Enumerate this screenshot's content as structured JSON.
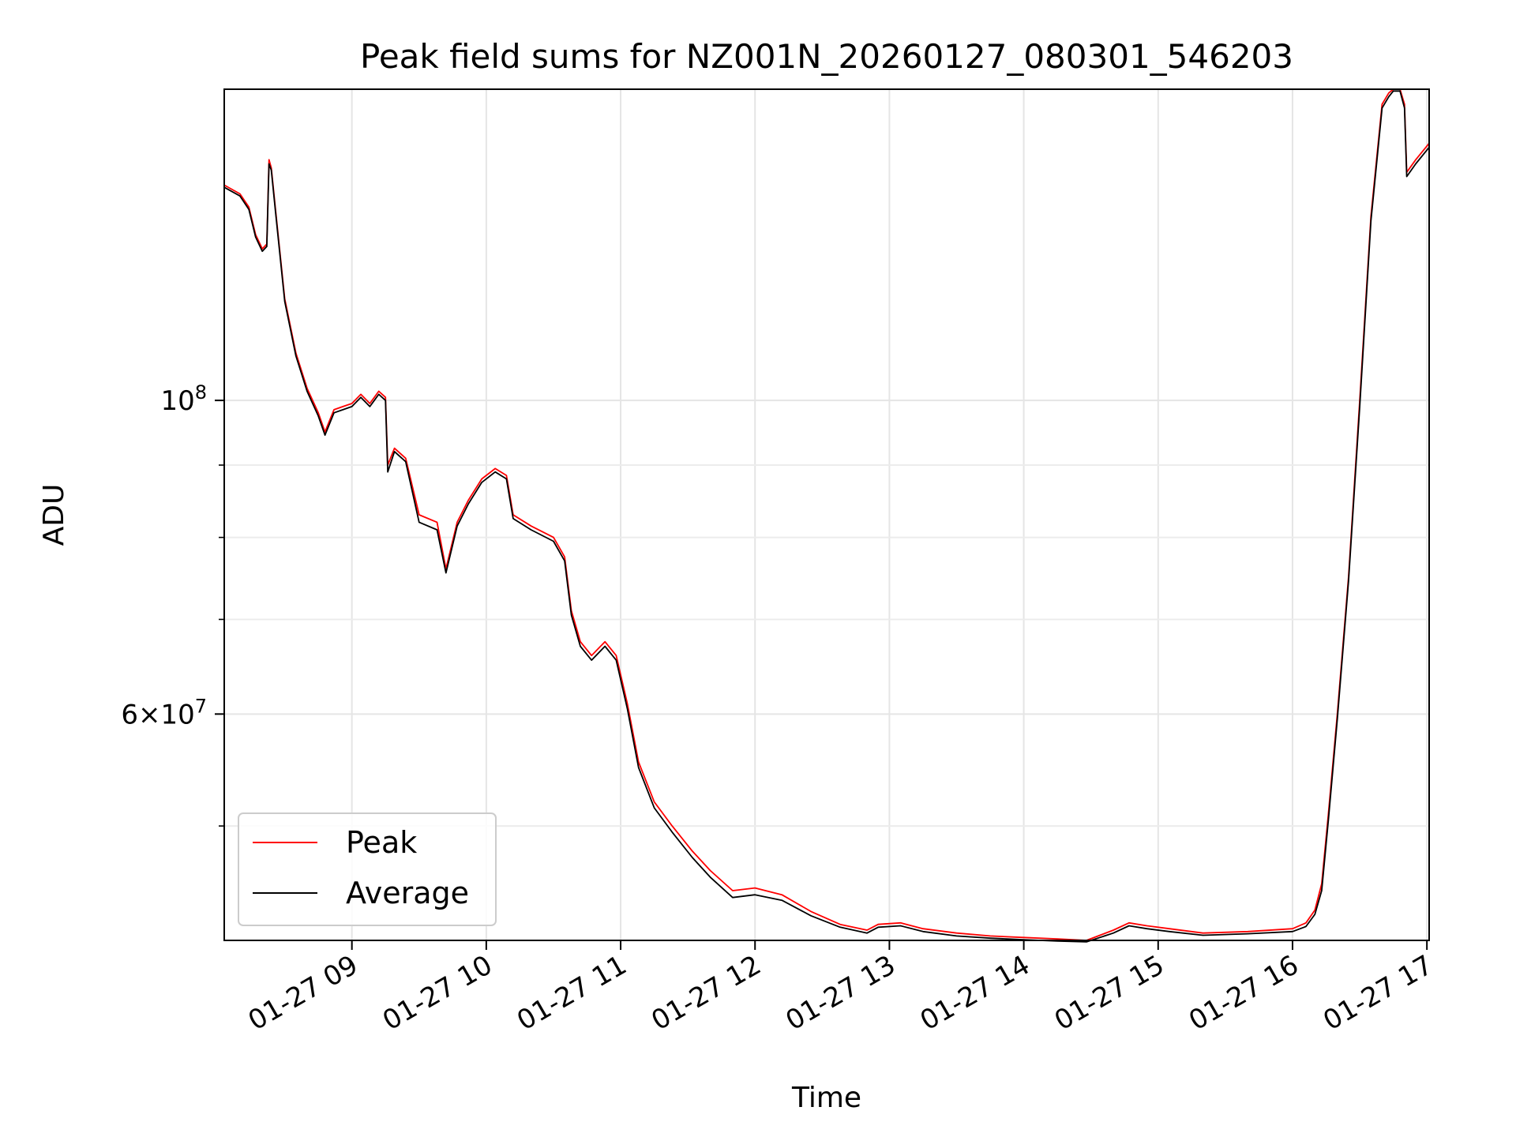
{
  "chart_data": {
    "type": "line",
    "title": "Peak field sums for NZ001N_20260127_080301_546203",
    "xlabel": "Time",
    "ylabel": "ADU",
    "yscale": "log",
    "xlim": [
      "01-27 08:03",
      "01-27 17:01"
    ],
    "ylim": [
      41500000,
      166000000
    ],
    "grid": true,
    "legend": "lower-left",
    "x_ticks": [
      "01-27 09",
      "01-27 10",
      "01-27 11",
      "01-27 12",
      "01-27 13",
      "01-27 14",
      "01-27 15",
      "01-27 16",
      "01-27 17"
    ],
    "y_ticks_major": [
      {
        "value": 100000000,
        "base": "10",
        "exp": "8",
        "mant": ""
      },
      {
        "value": 60000000,
        "base": "10",
        "exp": "7",
        "mant": "6"
      }
    ],
    "y_ticks_minor": [
      50000000,
      70000000,
      80000000,
      90000000
    ],
    "x": [
      "01-27 08:03",
      "01-27 08:10",
      "01-27 08:14",
      "01-27 08:17",
      "01-27 08:20",
      "01-27 08:22",
      "01-27 08:23",
      "01-27 08:24",
      "01-27 08:26",
      "01-27 08:30",
      "01-27 08:35",
      "01-27 08:40",
      "01-27 08:45",
      "01-27 08:48",
      "01-27 08:52",
      "01-27 08:56",
      "01-27 09:00",
      "01-27 09:04",
      "01-27 09:08",
      "01-27 09:12",
      "01-27 09:15",
      "01-27 09:16",
      "01-27 09:19",
      "01-27 09:24",
      "01-27 09:30",
      "01-27 09:38",
      "01-27 09:42",
      "01-27 09:47",
      "01-27 09:52",
      "01-27 09:58",
      "01-27 10:04",
      "01-27 10:09",
      "01-27 10:12",
      "01-27 10:20",
      "01-27 10:30",
      "01-27 10:35",
      "01-27 10:38",
      "01-27 10:42",
      "01-27 10:47",
      "01-27 10:53",
      "01-27 10:58",
      "01-27 11:03",
      "01-27 11:08",
      "01-27 11:15",
      "01-27 11:23",
      "01-27 11:32",
      "01-27 11:40",
      "01-27 11:50",
      "01-27 12:00",
      "01-27 12:12",
      "01-27 12:25",
      "01-27 12:38",
      "01-27 12:50",
      "01-27 12:55",
      "01-27 13:05",
      "01-27 13:15",
      "01-27 13:30",
      "01-27 13:45",
      "01-27 14:00",
      "01-27 14:15",
      "01-27 14:28",
      "01-27 14:40",
      "01-27 14:47",
      "01-27 14:55",
      "01-27 15:05",
      "01-27 15:20",
      "01-27 15:40",
      "01-27 16:00",
      "01-27 16:06",
      "01-27 16:10",
      "01-27 16:13",
      "01-27 16:16",
      "01-27 16:20",
      "01-27 16:25",
      "01-27 16:30",
      "01-27 16:35",
      "01-27 16:40",
      "01-27 16:43",
      "01-27 16:45",
      "01-27 16:48",
      "01-27 16:50",
      "01-27 16:51",
      "01-27 16:55",
      "01-27 17:01"
    ],
    "series": [
      {
        "name": "Peak",
        "color": "#ff0000",
        "values": [
          142000000,
          140000000,
          137000000,
          131000000,
          128000000,
          129000000,
          148000000,
          146000000,
          136000000,
          118000000,
          108000000,
          102000000,
          98000000,
          95000000,
          98500000,
          99000000,
          99500000,
          101000000,
          99500000,
          101500000,
          100500000,
          90000000,
          92500000,
          91000000,
          83000000,
          82000000,
          76000000,
          82000000,
          85000000,
          88000000,
          89500000,
          88500000,
          83000000,
          81500000,
          80000000,
          77500000,
          71000000,
          67500000,
          66000000,
          67500000,
          66000000,
          61000000,
          55500000,
          52000000,
          50000000,
          48000000,
          46500000,
          45000000,
          45200000,
          44700000,
          43500000,
          42600000,
          42200000,
          42600000,
          42700000,
          42300000,
          42000000,
          41800000,
          41700000,
          41600000,
          41500000,
          42200000,
          42700000,
          42500000,
          42300000,
          42000000,
          42100000,
          42300000,
          42700000,
          43600000,
          45500000,
          51000000,
          60000000,
          75000000,
          100000000,
          135000000,
          162000000,
          165000000,
          166000000,
          166000000,
          162000000,
          145000000,
          148000000,
          152000000
        ]
      },
      {
        "name": "Average",
        "color": "#000000",
        "values": [
          141500000,
          139500000,
          136500000,
          130500000,
          127500000,
          128500000,
          147000000,
          145500000,
          135500000,
          117500000,
          107500000,
          101500000,
          97500000,
          94500000,
          98000000,
          98500000,
          99000000,
          100500000,
          99000000,
          101000000,
          100000000,
          89000000,
          92000000,
          90500000,
          82000000,
          81000000,
          75500000,
          81500000,
          84500000,
          87500000,
          89000000,
          88000000,
          82500000,
          81000000,
          79500000,
          77000000,
          70500000,
          67000000,
          65500000,
          67000000,
          65500000,
          60500000,
          55000000,
          51500000,
          49500000,
          47500000,
          46000000,
          44500000,
          44700000,
          44300000,
          43200000,
          42400000,
          42000000,
          42400000,
          42500000,
          42100000,
          41800000,
          41650000,
          41550000,
          41450000,
          41400000,
          42000000,
          42500000,
          42300000,
          42100000,
          41850000,
          41950000,
          42100000,
          42450000,
          43300000,
          45000000,
          50500000,
          59500000,
          74500000,
          99000000,
          134000000,
          161000000,
          164000000,
          165500000,
          165500000,
          161000000,
          144000000,
          147000000,
          151000000
        ]
      }
    ]
  }
}
